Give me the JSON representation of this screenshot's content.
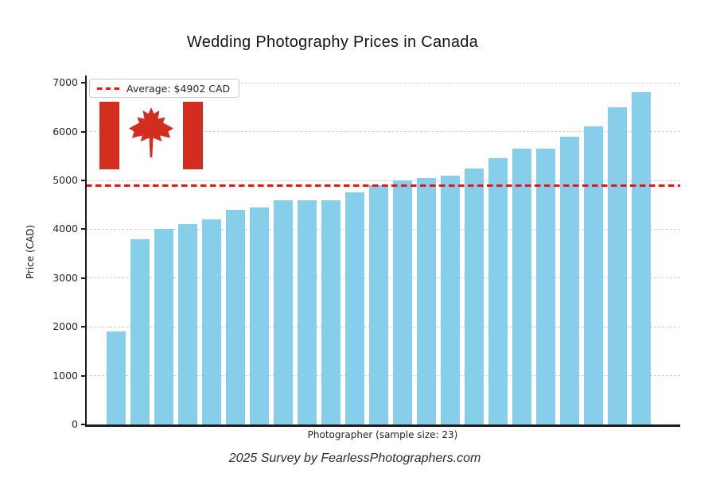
{
  "title": "Wedding Photography Prices in Canada",
  "caption": "2025 Survey by FearlessPhotographers.com",
  "legend": {
    "label": "Average: $4902 CAD"
  },
  "flag": {
    "name": "canada-flag",
    "red": "#d22d1e"
  },
  "colors": {
    "bar": "#87ceeb",
    "average_line": "#fb0f0c",
    "grid": "#cfcfcf",
    "spine": "#1c1c1c",
    "text": "#262626"
  },
  "chart_data": {
    "type": "bar",
    "title": "Wedding Photography Prices in Canada",
    "xlabel": "Photographer (sample size: 23)",
    "ylabel": "Price (CAD)",
    "sample_size": 23,
    "values": [
      1900,
      3800,
      4000,
      4100,
      4200,
      4400,
      4450,
      4600,
      4600,
      4600,
      4750,
      4900,
      5000,
      5050,
      5100,
      5250,
      5450,
      5650,
      5650,
      5900,
      6100,
      6500,
      6800
    ],
    "average": 4902,
    "average_label": "Average: $4902 CAD",
    "ylim": [
      0,
      7150
    ],
    "yticks": [
      0,
      1000,
      2000,
      3000,
      4000,
      5000,
      6000,
      7000
    ],
    "grid": true,
    "grid_style": "dashed",
    "legend_position": "upper left",
    "bar_color": "#87ceeb",
    "average_line_color": "#fb0f0c",
    "average_line_style": "dashed"
  }
}
